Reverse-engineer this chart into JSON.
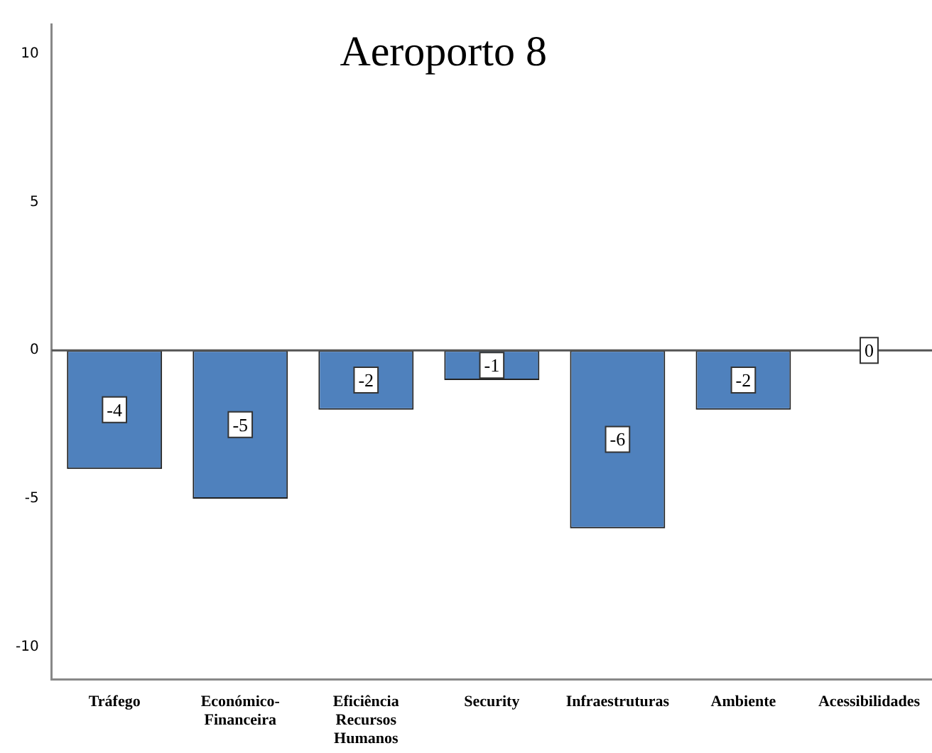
{
  "chart_data": {
    "type": "bar",
    "title": "Aeroporto 8",
    "categories": [
      "Tráfego",
      "Económico-\nFinanceira",
      "Eficiência\nRecursos\nHumanos",
      "Security",
      "Infraestruturas",
      "Ambiente",
      "Acessibilidades"
    ],
    "values": [
      -4,
      -5,
      -2,
      -1,
      -6,
      -2,
      0
    ],
    "color": "#4f81bd",
    "ylim": [
      -11.1,
      11
    ],
    "yticks": [
      -10,
      -5,
      0,
      5,
      10
    ],
    "grid": false,
    "data_labels": true,
    "ref_lines": [
      {
        "axis": "y",
        "value": 0,
        "color": "#555555"
      }
    ]
  }
}
